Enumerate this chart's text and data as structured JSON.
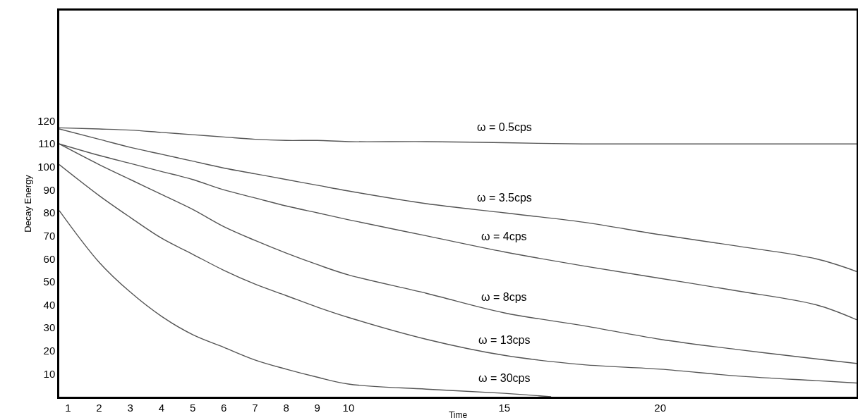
{
  "chart_data": {
    "type": "line",
    "xlabel": "Time",
    "ylabel": "Decay Energy",
    "x": [
      0.72,
      2,
      3,
      4,
      5,
      6,
      7,
      8,
      9,
      10,
      12.5,
      15,
      17.5,
      20,
      22.5,
      25,
      26.3
    ],
    "series": [
      {
        "name": "ω = 0.5cps",
        "color": "#555555",
        "values": [
          117,
          116.5,
          116,
          115,
          114,
          113,
          112,
          111.5,
          111.5,
          111,
          111,
          110.5,
          110,
          110,
          110,
          110,
          110
        ]
      },
      {
        "name": "ω = 3.5cps",
        "color": "#555555",
        "values": [
          116.5,
          112,
          108.5,
          105.5,
          102.5,
          99.5,
          97,
          94.5,
          92,
          89.5,
          84,
          80,
          76,
          70.5,
          65.5,
          60,
          54.5
        ]
      },
      {
        "name": "ω = 4cps",
        "color": "#555555",
        "values": [
          110,
          105,
          101.5,
          98,
          94.5,
          90,
          86.5,
          83,
          80,
          77,
          70,
          63,
          57,
          51.5,
          46,
          40,
          33.5
        ]
      },
      {
        "name": "ω = 8cps",
        "color": "#555555",
        "values": [
          110,
          101,
          94.5,
          88,
          81.5,
          74,
          68,
          62.5,
          57.5,
          53,
          45,
          36.5,
          31,
          25,
          20.5,
          16.5,
          14.5
        ]
      },
      {
        "name": "ω = 13cps",
        "color": "#555555",
        "values": [
          101,
          87.5,
          78,
          69,
          62,
          55,
          49,
          44,
          39,
          34.5,
          25,
          18,
          14,
          12,
          9,
          7,
          6
        ]
      },
      {
        "name": "ω = 30cps",
        "color": "#555555",
        "x": [
          0.72,
          2,
          3,
          4,
          5,
          6,
          7,
          8,
          9,
          10,
          12.5,
          15,
          16.5
        ],
        "values": [
          81,
          58.5,
          45.5,
          35,
          27,
          21.5,
          16,
          12,
          8.5,
          5.5,
          3.3,
          1.5,
          0
        ]
      }
    ],
    "xlim": [
      0.72,
      26.3
    ],
    "xticks": [
      1,
      2,
      3,
      4,
      5,
      6,
      7,
      8,
      9,
      10,
      15,
      20
    ],
    "ylim": [
      0,
      168
    ],
    "yticks": [
      10,
      20,
      30,
      40,
      50,
      60,
      70,
      80,
      90,
      100,
      110,
      120
    ],
    "grid": false,
    "legend": false,
    "marker": "none",
    "line_style": "solid"
  }
}
